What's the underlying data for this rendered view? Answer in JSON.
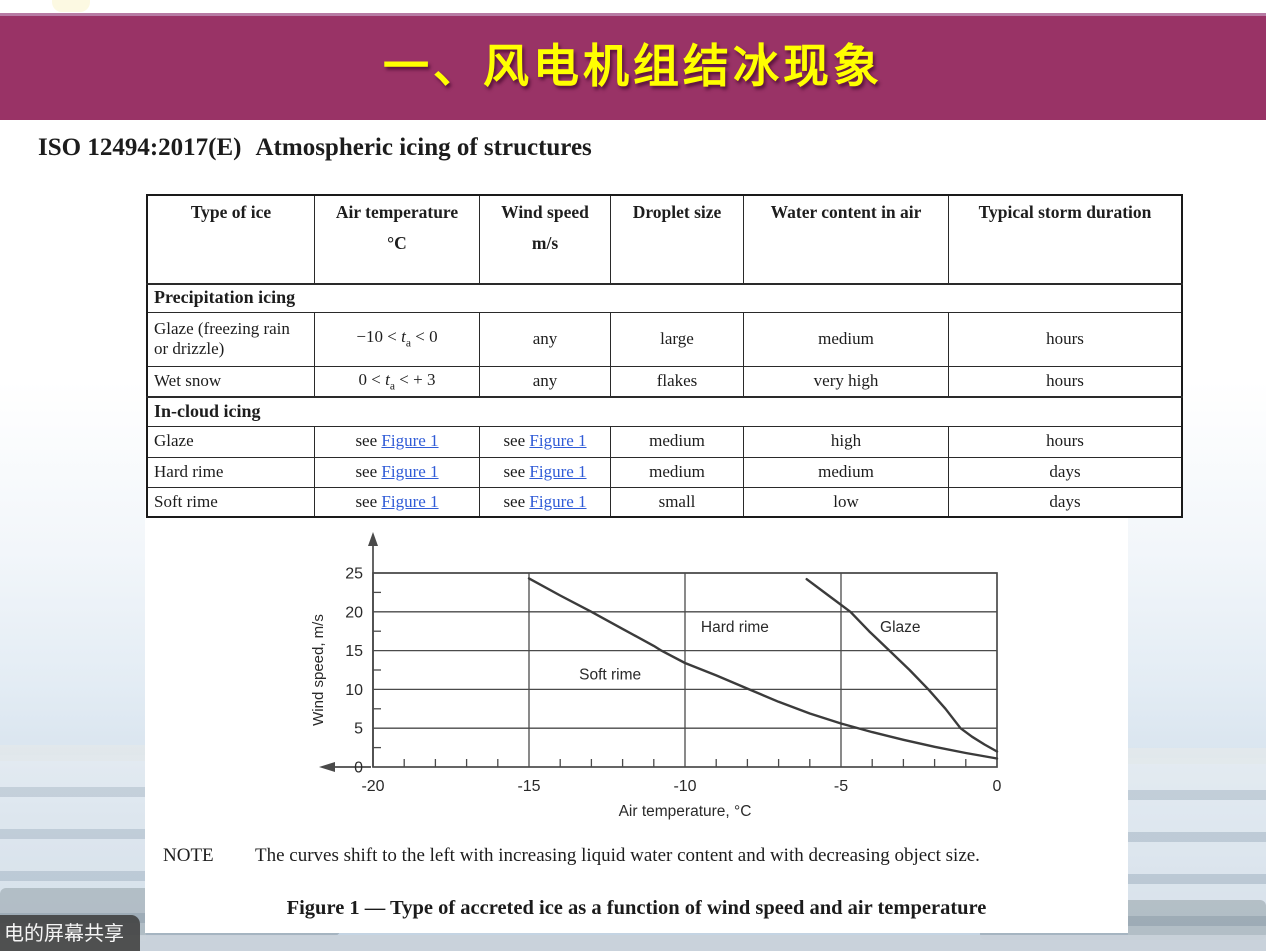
{
  "slide": {
    "banner": {
      "title": "一、风电机组结冰现象",
      "bg_color": "#993366",
      "text_color": "#ffff00"
    },
    "heading": {
      "code": "ISO 12494:2017(E)",
      "title": "Atmospheric icing of structures"
    },
    "table": {
      "columns": [
        {
          "title": "Type of ice",
          "unit": ""
        },
        {
          "title": "Air temperature",
          "unit": "°C"
        },
        {
          "title": "Wind speed",
          "unit": "m/s"
        },
        {
          "title": "Droplet size",
          "unit": ""
        },
        {
          "title": "Water content in air",
          "unit": ""
        },
        {
          "title": "Typical storm duration",
          "unit": ""
        }
      ],
      "rows": [
        {
          "type": "section",
          "label": "Precipitation icing"
        },
        {
          "type": "data",
          "cells": [
            "Glaze (freezing rain or drizzle)",
            "−10 < *t*~a~ < 0",
            "any",
            "large",
            "medium",
            "hours"
          ]
        },
        {
          "type": "data",
          "cells": [
            "Wet snow",
            "0 < *t*~a~ < + 3",
            "any",
            "flakes",
            "very high",
            "hours"
          ]
        },
        {
          "type": "section",
          "label": "In-cloud icing"
        },
        {
          "type": "data",
          "cells": [
            "Glaze",
            "see [Figure 1]",
            "see [Figure 1]",
            "medium",
            "high",
            "hours"
          ]
        },
        {
          "type": "data",
          "cells": [
            "Hard rime",
            "see [Figure 1]",
            "see [Figure 1]",
            "medium",
            "medium",
            "days"
          ]
        },
        {
          "type": "data",
          "cells": [
            "Soft rime",
            "see [Figure 1]",
            "see [Figure 1]",
            "small",
            "low",
            "days"
          ]
        }
      ],
      "link_color": "#2f5bd7"
    },
    "note": {
      "label": "NOTE",
      "text": "The curves shift to the left with increasing liquid water content and with decreasing object size."
    },
    "figure_caption": "Figure 1 — Type of accreted ice as a function of wind speed and air temperature",
    "overlay": {
      "screen_share_label": "电的屏幕共享"
    }
  },
  "chart_data": {
    "type": "line",
    "title": "",
    "xlabel": "Air temperature, °C",
    "ylabel": "Wind speed, m/s",
    "xlim": [
      -20,
      0
    ],
    "ylim": [
      0,
      25
    ],
    "x_ticks": [
      -20,
      -15,
      -10,
      -5,
      0
    ],
    "y_ticks": [
      0,
      5,
      10,
      15,
      20,
      25
    ],
    "x_minor_step": 1,
    "y_minor_step": 2.5,
    "grid": true,
    "legend_position": "none",
    "series": [
      {
        "name": "soft-rime-hard-rime-boundary",
        "points": [
          [
            -15,
            24.3
          ],
          [
            -14,
            22.1
          ],
          [
            -13,
            20.0
          ],
          [
            -12,
            17.8
          ],
          [
            -11,
            15.6
          ],
          [
            -10.76,
            15.0
          ],
          [
            -10,
            13.4
          ],
          [
            -9,
            11.8
          ],
          [
            -8,
            10.1
          ],
          [
            -7,
            8.4
          ],
          [
            -6,
            6.9
          ],
          [
            -5,
            5.6
          ],
          [
            -4,
            4.5
          ],
          [
            -3,
            3.5
          ],
          [
            -2,
            2.6
          ],
          [
            -1,
            1.8
          ],
          [
            0,
            1.1
          ]
        ]
      },
      {
        "name": "hard-rime-glaze-boundary",
        "points": [
          [
            -6.1,
            24.2
          ],
          [
            -5.4,
            22.1
          ],
          [
            -4.7,
            20.0
          ],
          [
            -4.1,
            17.5
          ],
          [
            -3.45,
            15.0
          ],
          [
            -2.8,
            12.5
          ],
          [
            -2.2,
            10.0
          ],
          [
            -1.65,
            7.5
          ],
          [
            -1.17,
            5.0
          ],
          [
            -0.8,
            3.9
          ],
          [
            -0.4,
            2.9
          ],
          [
            0,
            2.0
          ]
        ]
      }
    ],
    "region_labels": [
      {
        "text": "Soft rime",
        "x": -12.4,
        "y": 11.3
      },
      {
        "text": "Hard rime",
        "x": -8.4,
        "y": 17.4
      },
      {
        "text": "Glaze",
        "x": -3.1,
        "y": 17.4
      }
    ]
  }
}
